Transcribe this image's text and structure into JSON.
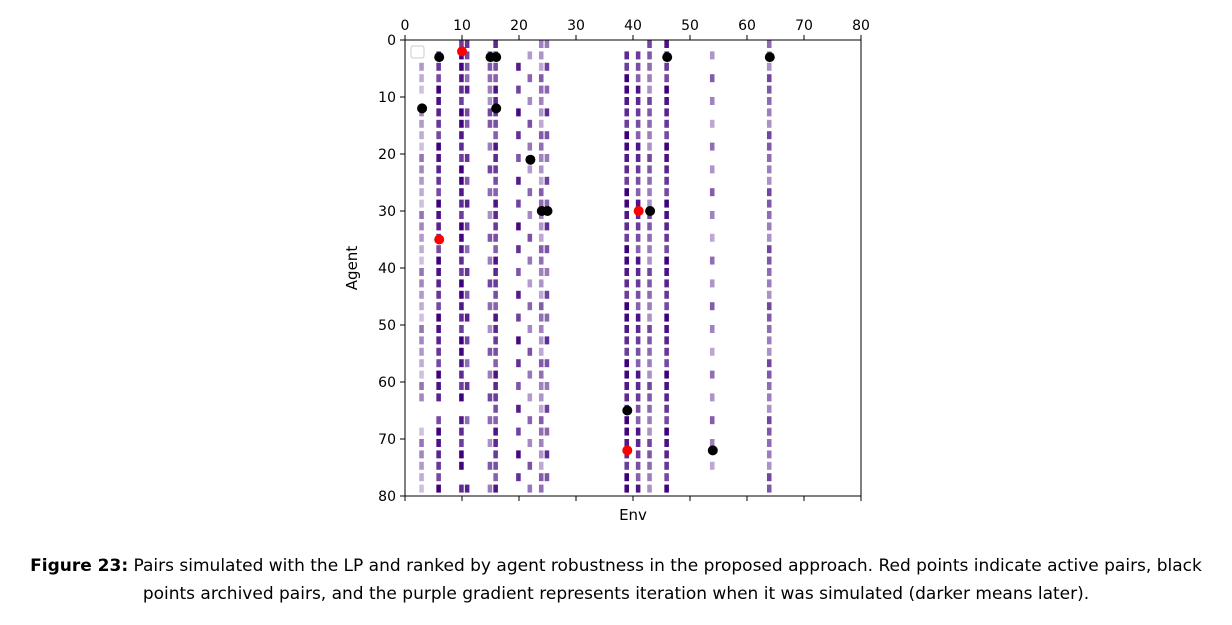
{
  "chart_data": {
    "type": "scatter",
    "xlabel": "Env",
    "ylabel": "Agent",
    "xlim": [
      0,
      80
    ],
    "ylim": [
      80,
      0
    ],
    "x_ticks": [
      0,
      10,
      20,
      30,
      40,
      50,
      60,
      70,
      80
    ],
    "y_ticks": [
      0,
      10,
      20,
      30,
      40,
      50,
      60,
      70,
      80
    ],
    "x_axis_position": "top",
    "y_axis_inverted": true,
    "grid": false,
    "legend": "top-left (empty)",
    "background_heatmap": {
      "description_of_encoding": "purple gradient = iteration when simulated (darker means later)",
      "colormap": "Purples",
      "columns": [
        {
          "env": 3,
          "agents": [
            4,
            6,
            8,
            12,
            14,
            16,
            18,
            20,
            22,
            24,
            26,
            28,
            30,
            32,
            34,
            36,
            38,
            40,
            42,
            44,
            46,
            48,
            50,
            52,
            54,
            56,
            58,
            60,
            62,
            68,
            70,
            72,
            74,
            76,
            78
          ],
          "shade": 0.35
        },
        {
          "env": 6,
          "agents": [
            2,
            4,
            6,
            8,
            10,
            12,
            14,
            16,
            18,
            20,
            22,
            24,
            26,
            28,
            30,
            32,
            34,
            36,
            38,
            40,
            42,
            44,
            46,
            48,
            50,
            52,
            54,
            56,
            58,
            60,
            62,
            66,
            68,
            70,
            72,
            74,
            76,
            78
          ],
          "shade": 0.85
        },
        {
          "env": 10,
          "agents": [
            0,
            2,
            4,
            6,
            8,
            10,
            12,
            14,
            16,
            18,
            20,
            22,
            24,
            26,
            28,
            30,
            32,
            34,
            36,
            38,
            40,
            42,
            44,
            46,
            48,
            50,
            52,
            54,
            56,
            58,
            60,
            62,
            66,
            68,
            70,
            72,
            74,
            78
          ],
          "shade": 0.9
        },
        {
          "env": 11,
          "agents": [
            0,
            2,
            4,
            6,
            8,
            12,
            14,
            20,
            24,
            28,
            32,
            36,
            40,
            44,
            48,
            52,
            56,
            60,
            66,
            78
          ],
          "shade": 0.7
        },
        {
          "env": 15,
          "agents": [
            2,
            4,
            6,
            8,
            10,
            12,
            14,
            18,
            22,
            26,
            30,
            34,
            38,
            42,
            46,
            50,
            54,
            58,
            62,
            66,
            70,
            74,
            78
          ],
          "shade": 0.55
        },
        {
          "env": 16,
          "agents": [
            0,
            2,
            4,
            6,
            8,
            10,
            12,
            14,
            16,
            18,
            20,
            22,
            24,
            26,
            28,
            30,
            32,
            34,
            36,
            38,
            40,
            42,
            44,
            46,
            48,
            50,
            52,
            54,
            56,
            58,
            60,
            62,
            64,
            66,
            68,
            70,
            72,
            74,
            76,
            78
          ],
          "shade": 0.75
        },
        {
          "env": 20,
          "agents": [
            4,
            8,
            12,
            16,
            20,
            24,
            28,
            32,
            36,
            40,
            44,
            48,
            52,
            56,
            60,
            64,
            68,
            72,
            76
          ],
          "shade": 0.8
        },
        {
          "env": 22,
          "agents": [
            2,
            6,
            10,
            14,
            18,
            22,
            26,
            30,
            34,
            38,
            42,
            46,
            50,
            54,
            58,
            62,
            66,
            70,
            74,
            78
          ],
          "shade": 0.5
        },
        {
          "env": 24,
          "agents": [
            0,
            2,
            4,
            6,
            8,
            10,
            12,
            14,
            16,
            18,
            20,
            22,
            24,
            26,
            28,
            30,
            32,
            34,
            36,
            38,
            40,
            42,
            44,
            46,
            48,
            50,
            52,
            54,
            56,
            58,
            60,
            62,
            64,
            66,
            68,
            70,
            72,
            74,
            76,
            78
          ],
          "shade": 0.45
        },
        {
          "env": 25,
          "agents": [
            0,
            4,
            8,
            12,
            16,
            20,
            24,
            28,
            32,
            36,
            40,
            44,
            48,
            52,
            56,
            60,
            64,
            68,
            72,
            76
          ],
          "shade": 0.65
        },
        {
          "env": 39,
          "agents": [
            2,
            4,
            6,
            8,
            10,
            12,
            14,
            16,
            18,
            20,
            22,
            24,
            26,
            28,
            30,
            32,
            34,
            36,
            38,
            40,
            42,
            44,
            46,
            48,
            50,
            52,
            54,
            56,
            58,
            60,
            62,
            64,
            66,
            68,
            70,
            72,
            74,
            76,
            78
          ],
          "shade": 0.9
        },
        {
          "env": 41,
          "agents": [
            2,
            4,
            6,
            8,
            10,
            12,
            14,
            16,
            18,
            20,
            22,
            24,
            26,
            28,
            30,
            32,
            34,
            36,
            38,
            40,
            42,
            44,
            46,
            48,
            50,
            52,
            54,
            56,
            58,
            60,
            62,
            64,
            66,
            68,
            70,
            72,
            74,
            76,
            78
          ],
          "shade": 0.75
        },
        {
          "env": 43,
          "agents": [
            0,
            2,
            4,
            6,
            8,
            10,
            12,
            14,
            16,
            18,
            20,
            22,
            24,
            26,
            28,
            30,
            32,
            34,
            36,
            38,
            40,
            42,
            44,
            46,
            48,
            50,
            52,
            54,
            56,
            58,
            60,
            62,
            64,
            66,
            68,
            70,
            72,
            74,
            76,
            78
          ],
          "shade": 0.55
        },
        {
          "env": 46,
          "agents": [
            0,
            2,
            4,
            6,
            8,
            10,
            12,
            14,
            16,
            18,
            20,
            22,
            24,
            26,
            28,
            30,
            32,
            34,
            36,
            38,
            40,
            42,
            44,
            46,
            48,
            50,
            52,
            54,
            56,
            58,
            60,
            62,
            64,
            66,
            68,
            70,
            72,
            74,
            76,
            78
          ],
          "shade": 0.85
        },
        {
          "env": 54,
          "agents": [
            2,
            6,
            10,
            14,
            18,
            22,
            26,
            30,
            34,
            38,
            42,
            46,
            50,
            54,
            58,
            62,
            66,
            70,
            74
          ],
          "shade": 0.45
        },
        {
          "env": 64,
          "agents": [
            0,
            2,
            4,
            6,
            8,
            10,
            12,
            14,
            16,
            18,
            20,
            22,
            24,
            26,
            28,
            30,
            32,
            34,
            36,
            38,
            40,
            42,
            44,
            46,
            48,
            50,
            52,
            54,
            56,
            58,
            60,
            62,
            64,
            66,
            68,
            70,
            72,
            74,
            76,
            78
          ],
          "shade": 0.55
        }
      ]
    },
    "series": [
      {
        "color": "#ff0000",
        "points": [
          [
            10,
            2
          ],
          [
            6,
            35
          ],
          [
            41,
            30
          ],
          [
            39,
            72
          ]
        ]
      },
      {
        "color": "#000000",
        "points": [
          [
            6,
            3
          ],
          [
            15,
            3
          ],
          [
            16,
            3
          ],
          [
            46,
            3
          ],
          [
            64,
            3
          ],
          [
            3,
            12
          ],
          [
            16,
            12
          ],
          [
            22,
            21
          ],
          [
            24,
            30
          ],
          [
            25,
            30
          ],
          [
            43,
            30
          ],
          [
            39,
            65
          ],
          [
            54,
            72
          ]
        ]
      }
    ]
  },
  "caption": {
    "label": "Figure 23:",
    "text": " Pairs simulated with the LP and ranked by agent robustness in the proposed approach. Red points indicate active pairs, black points archived pairs, and the purple gradient represents iteration when it was simulated (darker means later)."
  }
}
